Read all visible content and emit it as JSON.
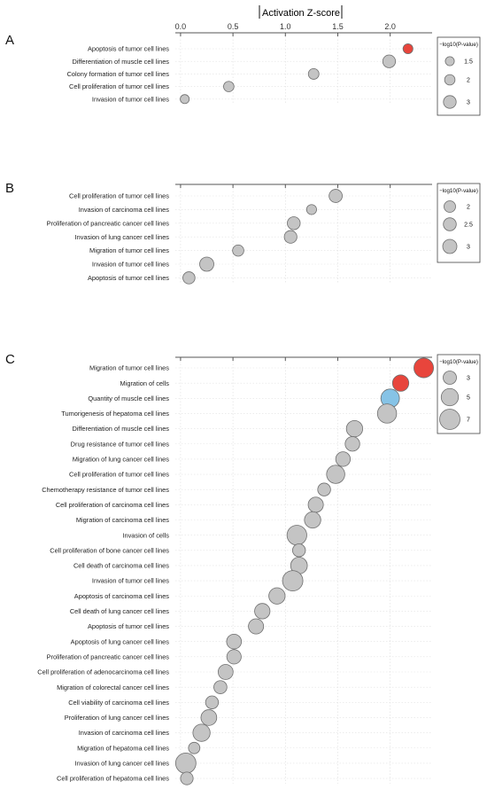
{
  "axis_title": "Activation Z-score",
  "colors": {
    "neutral": "#c4c4c4",
    "activated": "#e8453c",
    "inhibited": "#86c3e6"
  },
  "chart_data": [
    {
      "type": "scatter",
      "panel": "A",
      "xlabel": "Activation Z-score",
      "xlim": [
        -0.05,
        2.4
      ],
      "xticks": [
        0.0,
        0.5,
        1.0,
        1.5,
        2.0
      ],
      "xtick_labels": [
        "0.0",
        "0.5",
        "1.0",
        "1.5",
        "2.0"
      ],
      "grid": true,
      "legend_title": "−log10(P-value)",
      "legend_labels": [
        "1.5",
        "2",
        "3"
      ],
      "legend_values": [
        1.5,
        2,
        3
      ],
      "categories": [
        "Apoptosis of tumor cell lines",
        "Differentiation of muscle cell lines",
        "Colony formation of tumor cell lines",
        "Cell proliferation of tumor cell lines",
        "Invasion of tumor cell lines"
      ],
      "x": [
        2.17,
        1.99,
        1.27,
        0.46,
        0.04
      ],
      "size": [
        1.8,
        3.0,
        2.1,
        2.0,
        1.5
      ],
      "color": [
        "activated",
        "neutral",
        "neutral",
        "neutral",
        "neutral"
      ]
    },
    {
      "type": "scatter",
      "panel": "B",
      "xlabel": "Activation Z-score",
      "xlim": [
        -0.05,
        2.4
      ],
      "xticks": [
        0.0,
        0.5,
        1.0,
        1.5,
        2.0
      ],
      "xtick_labels": [],
      "grid": true,
      "legend_title": "−log10(P-value)",
      "legend_labels": [
        "2",
        "2.5",
        "3"
      ],
      "legend_values": [
        2,
        2.5,
        3
      ],
      "categories": [
        "Cell proliferation of tumor cell lines",
        "Invasion of carcinoma cell lines",
        "Proliferation of pancreatic cancer cell lines",
        "Invasion of lung cancer cell lines",
        "Migration of tumor cell lines",
        "Invasion of tumor cell lines",
        "Apoptosis of tumor cell lines"
      ],
      "x": [
        1.48,
        1.25,
        1.08,
        1.05,
        0.55,
        0.25,
        0.08
      ],
      "size": [
        2.6,
        1.5,
        2.5,
        2.4,
        1.9,
        3.0,
        2.2
      ],
      "color": [
        "neutral",
        "neutral",
        "neutral",
        "neutral",
        "neutral",
        "neutral",
        "neutral"
      ]
    },
    {
      "type": "scatter",
      "panel": "C",
      "xlabel": "Activation Z-score",
      "xlim": [
        -0.05,
        2.4
      ],
      "xticks": [
        0.0,
        0.5,
        1.0,
        1.5,
        2.0
      ],
      "xtick_labels": [],
      "grid": true,
      "legend_title": "−log10(P-value)",
      "legend_labels": [
        "3",
        "5",
        "7"
      ],
      "legend_values": [
        3,
        5,
        7
      ],
      "categories": [
        "Migration of tumor cell lines",
        "Migration of cells",
        "Quantity of muscle cell lines",
        "Tumorigenesis of hepatoma cell lines",
        "Differentiation of muscle cell lines",
        "Drug resistance of tumor cell lines",
        "Migration of lung cancer cell lines",
        "Cell proliferation of tumor cell lines",
        "Chemotherapy resistance of tumor cell lines",
        "Cell proliferation of carcinoma cell lines",
        "Migration of carcinoma cell lines",
        "Invasion of cells",
        "Cell proliferation of bone cancer cell lines",
        "Cell death of carcinoma cell lines",
        "Invasion of tumor cell lines",
        "Apoptosis of carcinoma cell lines",
        "Cell death of lung cancer cell lines",
        "Apoptosis of tumor cell lines",
        "Apoptosis of lung cancer cell lines",
        "Proliferation of pancreatic cancer cell lines",
        "Cell proliferation of adenocarcinoma cell lines",
        "Migration of colorectal cancer cell lines",
        "Cell viability of carcinoma cell lines",
        "Proliferation of lung cancer cell lines",
        "Invasion of carcinoma cell lines",
        "Migration of hepatoma cell lines",
        "Invasion of lung cancer cell lines",
        "Cell proliferation of hepatoma cell lines"
      ],
      "x": [
        2.32,
        2.1,
        2.0,
        1.97,
        1.66,
        1.64,
        1.55,
        1.48,
        1.37,
        1.29,
        1.26,
        1.11,
        1.13,
        1.13,
        1.07,
        0.92,
        0.78,
        0.72,
        0.51,
        0.51,
        0.43,
        0.38,
        0.3,
        0.27,
        0.2,
        0.13,
        0.05,
        0.06
      ],
      "size": [
        6.5,
        4.5,
        5.8,
        6.2,
        4.5,
        3.6,
        3.6,
        5.6,
        2.8,
        3.9,
        4.5,
        6.6,
        2.8,
        4.7,
        7.0,
        4.5,
        4.0,
        3.9,
        3.7,
        3.5,
        3.8,
        2.9,
        2.8,
        4.2,
        5.0,
        2.2,
        7.0,
        2.7
      ],
      "color": [
        "activated",
        "activated",
        "inhibited",
        "neutral",
        "neutral",
        "neutral",
        "neutral",
        "neutral",
        "neutral",
        "neutral",
        "neutral",
        "neutral",
        "neutral",
        "neutral",
        "neutral",
        "neutral",
        "neutral",
        "neutral",
        "neutral",
        "neutral",
        "neutral",
        "neutral",
        "neutral",
        "neutral",
        "neutral",
        "neutral",
        "neutral",
        "neutral"
      ]
    }
  ]
}
